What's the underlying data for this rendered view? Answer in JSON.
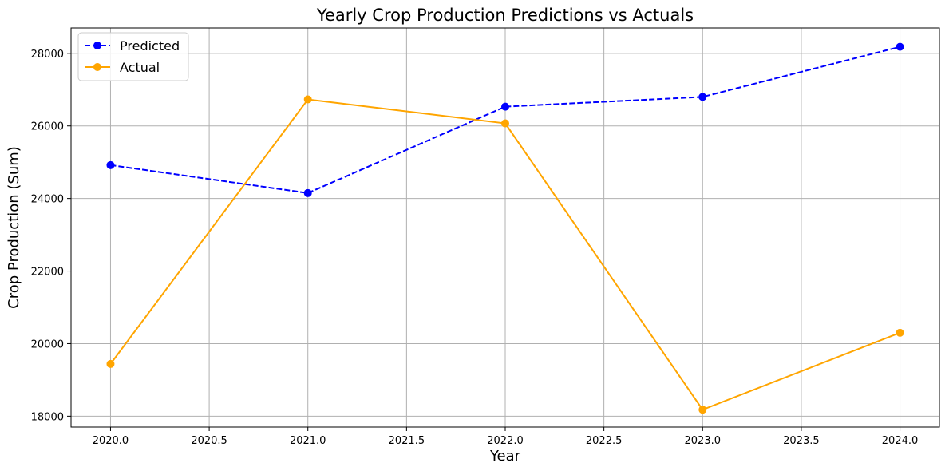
{
  "chart_data": {
    "type": "line",
    "title": "Yearly Crop Production Predictions vs Actuals",
    "xlabel": "Year",
    "ylabel": "Crop Production (Sum)",
    "x": [
      2020,
      2021,
      2022,
      2023,
      2024
    ],
    "xlim": [
      2019.8,
      2024.2
    ],
    "ylim": [
      17700,
      28700
    ],
    "xticks": [
      2020.0,
      2020.5,
      2021.0,
      2021.5,
      2022.0,
      2022.5,
      2023.0,
      2023.5,
      2024.0
    ],
    "xtick_labels": [
      "2020.0",
      "2020.5",
      "2021.0",
      "2021.5",
      "2022.0",
      "2022.5",
      "2023.0",
      "2023.5",
      "2024.0"
    ],
    "yticks": [
      18000,
      20000,
      22000,
      24000,
      26000,
      28000
    ],
    "ytick_labels": [
      "18000",
      "20000",
      "22000",
      "24000",
      "26000",
      "28000"
    ],
    "grid": true,
    "legend_position": "top-left",
    "series": [
      {
        "name": "Predicted",
        "values": [
          24920,
          24150,
          26530,
          26800,
          28180
        ],
        "color": "#0000ff",
        "line_style": "dashed",
        "marker": "circle"
      },
      {
        "name": "Actual",
        "values": [
          19440,
          26730,
          26070,
          18180,
          20300
        ],
        "color": "#ffa500",
        "line_style": "solid",
        "marker": "circle"
      }
    ]
  }
}
